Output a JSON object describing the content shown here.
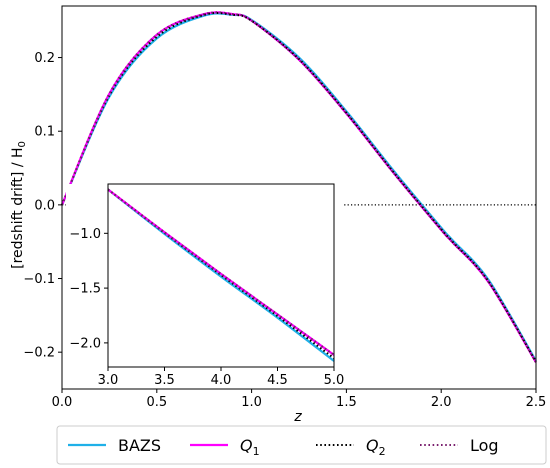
{
  "chart_data": [
    {
      "type": "line",
      "title": "",
      "xlabel": "z",
      "ylabel": "[redshift drift] / H",
      "ylabel_subscript": "0",
      "xlim": [
        0.0,
        2.5
      ],
      "ylim": [
        -0.25,
        0.27
      ],
      "xticks": [
        "0.0",
        "0.5",
        "1.0",
        "1.5",
        "2.0",
        "2.5"
      ],
      "yticks": [
        "−0.2",
        "−0.1",
        "0.0",
        "0.1",
        "0.2"
      ],
      "grid": false,
      "reference_line": {
        "y": 0.0,
        "style": "dotted",
        "color": "#000000"
      },
      "x": [
        0.0,
        0.25,
        0.5,
        0.75,
        0.9,
        1.0,
        1.25,
        1.5,
        1.75,
        2.0,
        2.06,
        2.25,
        2.5
      ],
      "series": [
        {
          "name": "BAZS",
          "color": "#1fb0e8",
          "style": "solid",
          "values": [
            0.0,
            0.147,
            0.226,
            0.257,
            0.258,
            0.251,
            0.2,
            0.127,
            0.046,
            -0.031,
            -0.048,
            -0.102,
            -0.212
          ]
        },
        {
          "name": "Q",
          "name_subscript": "1",
          "color": "#ff00ff",
          "style": "solid",
          "values": [
            0.0,
            0.151,
            0.231,
            0.259,
            0.259,
            0.25,
            0.197,
            0.124,
            0.043,
            -0.034,
            -0.051,
            -0.105,
            -0.214
          ]
        },
        {
          "name": "Q",
          "name_subscript": "2",
          "color": "#000000",
          "style": "dotted",
          "values": [
            0.0,
            0.149,
            0.228,
            0.258,
            0.258,
            0.25,
            0.198,
            0.125,
            0.044,
            -0.033,
            -0.05,
            -0.104,
            -0.213
          ]
        },
        {
          "name": "Log",
          "color": "#7a1f6e",
          "style": "dotted",
          "values": [
            0.0,
            0.151,
            0.231,
            0.259,
            0.259,
            0.25,
            0.197,
            0.124,
            0.043,
            -0.034,
            -0.051,
            -0.105,
            -0.214
          ]
        }
      ],
      "legend": {
        "placement": "bottom-outside"
      }
    },
    {
      "type": "line",
      "title": "",
      "xlabel": "",
      "ylabel": "",
      "xlim": [
        3.0,
        5.0
      ],
      "ylim": [
        -2.22,
        -0.55
      ],
      "xticks": [
        "3.0",
        "3.5",
        "4.0",
        "4.5",
        "5.0"
      ],
      "yticks": [
        "−1.0",
        "−1.5",
        "−2.0"
      ],
      "grid": false,
      "x": [
        3.0,
        3.5,
        4.0,
        4.5,
        5.0
      ],
      "series": [
        {
          "name": "BAZS",
          "color": "#1fb0e8",
          "style": "solid",
          "values": [
            -0.6,
            -1.005,
            -1.395,
            -1.77,
            -2.165
          ]
        },
        {
          "name": "Q",
          "name_subscript": "1",
          "color": "#ff00ff",
          "style": "solid",
          "values": [
            -0.6,
            -0.99,
            -1.37,
            -1.74,
            -2.11
          ]
        },
        {
          "name": "Q",
          "name_subscript": "2",
          "color": "#000000",
          "style": "dotted",
          "values": [
            -0.6,
            -0.995,
            -1.38,
            -1.755,
            -2.14
          ]
        },
        {
          "name": "Log",
          "color": "#7a1f6e",
          "style": "dotted",
          "values": [
            -0.6,
            -0.99,
            -1.37,
            -1.74,
            -2.11
          ]
        }
      ]
    }
  ]
}
